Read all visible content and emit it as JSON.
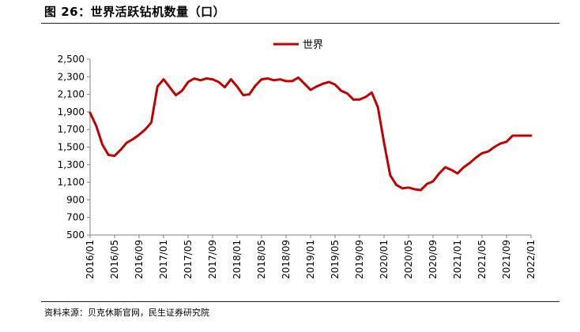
{
  "figure": {
    "title": "图 26：世界活跃钻机数量（口）",
    "source": "资料来源：贝克休斯官网，民生证券研究院"
  },
  "colors": {
    "series": "#c00000",
    "axis": "#808080",
    "text": "#000000"
  },
  "chart_data": {
    "type": "line",
    "title": "",
    "xlabel": "",
    "ylabel": "",
    "ylim": [
      500,
      2500
    ],
    "yticks": [
      "500",
      "700",
      "900",
      "1,100",
      "1,300",
      "1,500",
      "1,700",
      "1,900",
      "2,100",
      "2,300",
      "2,500"
    ],
    "xticks": [
      "2016/01",
      "2016/05",
      "2016/09",
      "2017/01",
      "2017/05",
      "2017/09",
      "2018/01",
      "2018/05",
      "2018/09",
      "2019/01",
      "2019/05",
      "2019/09",
      "2020/01",
      "2020/05",
      "2020/09",
      "2021/01",
      "2021/05",
      "2021/09",
      "2022/01"
    ],
    "grid": false,
    "legend": "top-center",
    "series": [
      {
        "name": "世界",
        "x": [
          "2016/01",
          "2016/02",
          "2016/03",
          "2016/04",
          "2016/05",
          "2016/06",
          "2016/07",
          "2016/08",
          "2016/09",
          "2016/10",
          "2016/11",
          "2016/12",
          "2017/01",
          "2017/02",
          "2017/03",
          "2017/04",
          "2017/05",
          "2017/06",
          "2017/07",
          "2017/08",
          "2017/09",
          "2017/10",
          "2017/11",
          "2017/12",
          "2018/01",
          "2018/02",
          "2018/03",
          "2018/04",
          "2018/05",
          "2018/06",
          "2018/07",
          "2018/08",
          "2018/09",
          "2018/10",
          "2018/11",
          "2018/12",
          "2019/01",
          "2019/02",
          "2019/03",
          "2019/04",
          "2019/05",
          "2019/06",
          "2019/07",
          "2019/08",
          "2019/09",
          "2019/10",
          "2019/11",
          "2019/12",
          "2020/01",
          "2020/02",
          "2020/03",
          "2020/04",
          "2020/05",
          "2020/06",
          "2020/07",
          "2020/08",
          "2020/09",
          "2020/10",
          "2020/11",
          "2020/12",
          "2021/01",
          "2021/02",
          "2021/03",
          "2021/04",
          "2021/05",
          "2021/06",
          "2021/07",
          "2021/08",
          "2021/09",
          "2021/10",
          "2021/11",
          "2021/12",
          "2022/01"
        ],
        "values": [
          1890,
          1740,
          1530,
          1410,
          1400,
          1470,
          1550,
          1590,
          1640,
          1700,
          1780,
          2190,
          2270,
          2180,
          2090,
          2140,
          2240,
          2280,
          2260,
          2280,
          2270,
          2240,
          2180,
          2270,
          2190,
          2090,
          2100,
          2200,
          2270,
          2280,
          2260,
          2270,
          2250,
          2250,
          2290,
          2220,
          2150,
          2190,
          2220,
          2240,
          2210,
          2140,
          2110,
          2040,
          2040,
          2070,
          2120,
          1950,
          1550,
          1180,
          1070,
          1030,
          1040,
          1020,
          1010,
          1080,
          1110,
          1200,
          1270,
          1240,
          1200,
          1270,
          1320,
          1380,
          1430,
          1450,
          1500,
          1540,
          1560,
          1630,
          1630,
          1630,
          1630
        ]
      }
    ]
  }
}
